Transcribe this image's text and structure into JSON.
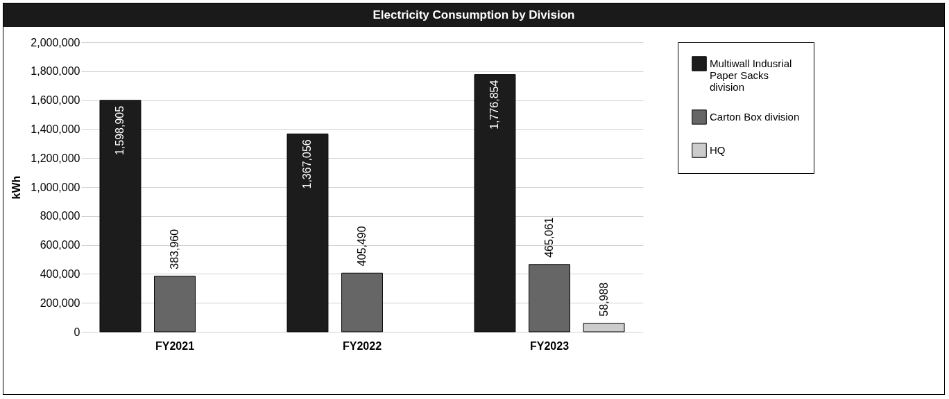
{
  "chart_data": {
    "type": "bar",
    "title": "Electricity Consumption by Division",
    "ylabel": "kWh",
    "categories": [
      "FY2021",
      "FY2022",
      "FY2023"
    ],
    "series": [
      {
        "name": "Multiwall Indusrial Paper Sacks division",
        "color": "#1c1c1c",
        "values": [
          1598905,
          1367056,
          1776854
        ],
        "value_labels": [
          "1,598,905",
          "1,367,056",
          "1,776,854"
        ]
      },
      {
        "name": "Carton Box division",
        "color": "#666666",
        "values": [
          383960,
          405490,
          465061
        ],
        "value_labels": [
          "383,960",
          "405,490",
          "465,061"
        ]
      },
      {
        "name": "HQ",
        "color": "#cccccc",
        "values": [
          null,
          null,
          58988
        ],
        "value_labels": [
          null,
          null,
          "58,988"
        ]
      }
    ],
    "ylim": [
      0,
      2000000
    ],
    "yticks": [
      {
        "value": 0,
        "label": "0"
      },
      {
        "value": 200000,
        "label": "200,000"
      },
      {
        "value": 400000,
        "label": "400,000"
      },
      {
        "value": 600000,
        "label": "600,000"
      },
      {
        "value": 800000,
        "label": "800,000"
      },
      {
        "value": 1000000,
        "label": "1,000,000"
      },
      {
        "value": 1200000,
        "label": "1,200,000"
      },
      {
        "value": 1400000,
        "label": "1,400,000"
      },
      {
        "value": 1600000,
        "label": "1,600,000"
      },
      {
        "value": 1800000,
        "label": "1,800,000"
      },
      {
        "value": 2000000,
        "label": "2,000,000"
      }
    ],
    "grid": "y",
    "legend": "right"
  }
}
